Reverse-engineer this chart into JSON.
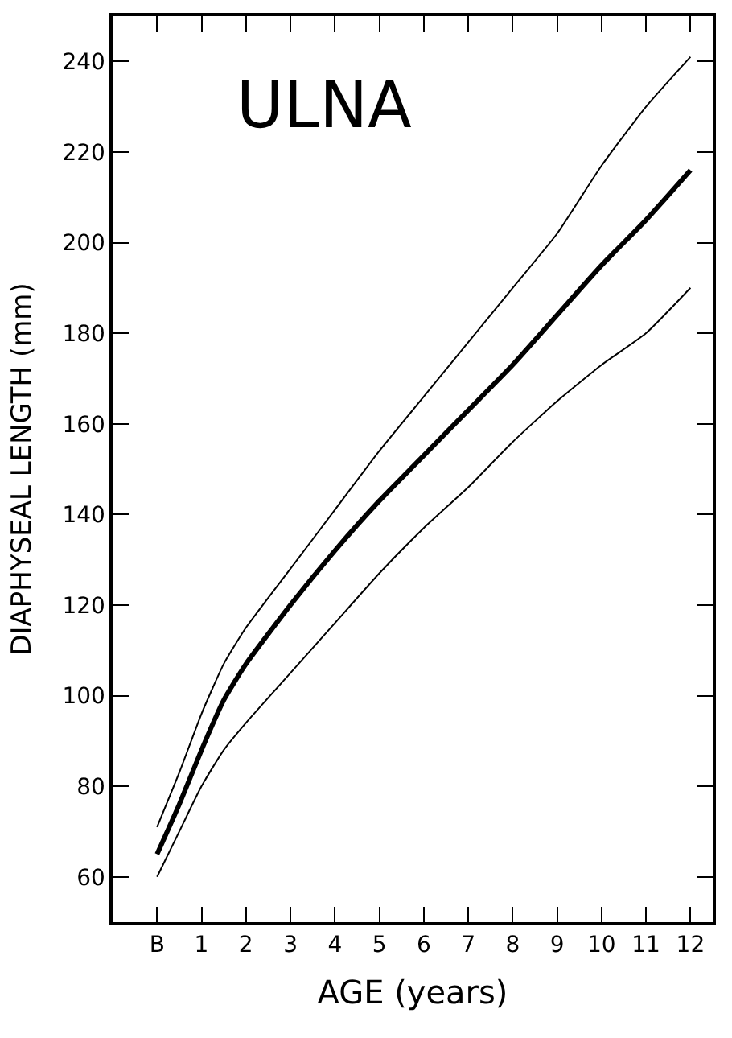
{
  "chart_data": {
    "type": "line",
    "xlabel": "AGE (years)",
    "ylabel": "DIAPHYSEAL LENGTH (mm)",
    "annotations": [
      "ULNA"
    ],
    "x": [
      0,
      0.5,
      1,
      1.5,
      2,
      3,
      4,
      5,
      6,
      7,
      8,
      9,
      10,
      11,
      12
    ],
    "series": [
      {
        "color": "#000000",
        "values": [
          71,
          83,
          96,
          107,
          115,
          128,
          141,
          154,
          166,
          178,
          190,
          202,
          217,
          230,
          241
        ]
      },
      {
        "color": "#000000",
        "values": [
          65,
          76,
          88,
          99,
          107,
          120,
          132,
          143,
          153,
          163,
          173,
          184,
          195,
          205,
          216
        ]
      },
      {
        "color": "#000000",
        "values": [
          60,
          70,
          80,
          88,
          94,
          105,
          116,
          127,
          137,
          146,
          156,
          165,
          173,
          180,
          190
        ]
      }
    ],
    "xlim": [
      -1,
      12.5
    ],
    "ylim": [
      50,
      250
    ],
    "xticks": [
      {
        "value": 0,
        "label": "B"
      },
      1,
      2,
      3,
      4,
      5,
      6,
      7,
      8,
      9,
      10,
      11,
      12
    ],
    "yticks": [
      60,
      80,
      100,
      120,
      140,
      160,
      180,
      200,
      220,
      240
    ],
    "marker": "none",
    "line_style": "solid"
  }
}
